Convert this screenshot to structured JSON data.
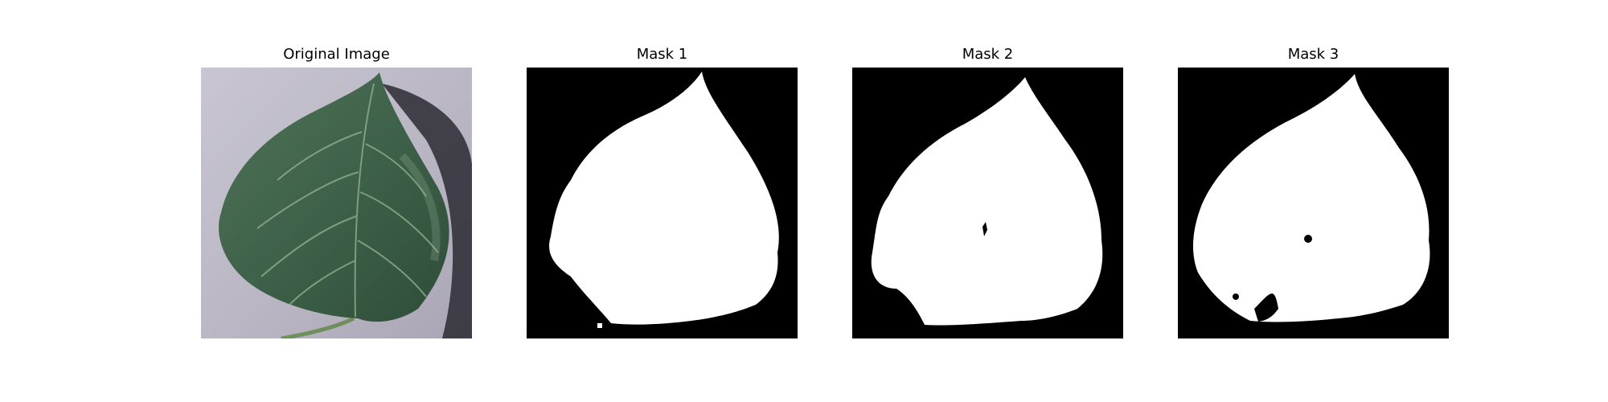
{
  "figure": {
    "panels": [
      {
        "title": "Original Image",
        "kind": "photo"
      },
      {
        "title": "Mask 1",
        "kind": "mask"
      },
      {
        "title": "Mask 2",
        "kind": "mask"
      },
      {
        "title": "Mask 3",
        "kind": "mask"
      }
    ]
  },
  "colors": {
    "mask_background": "#000000",
    "mask_foreground": "#ffffff",
    "leaf_green": "#3f6249",
    "photo_background": "#b9b5c3"
  }
}
